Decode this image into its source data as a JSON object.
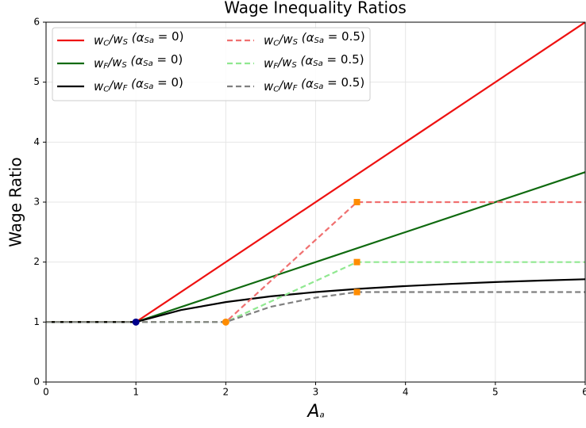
{
  "chart_data": {
    "type": "line",
    "title": "Wage Inequality Ratios",
    "xlabel": "A_a",
    "ylabel": "Wage Ratio",
    "xlim": [
      0,
      6
    ],
    "ylim": [
      0,
      6
    ],
    "xticks": [
      0,
      1,
      2,
      3,
      4,
      5,
      6
    ],
    "yticks": [
      0,
      1,
      2,
      3,
      4,
      5,
      6
    ],
    "grid": true,
    "legend": "upper left",
    "series": [
      {
        "name": "w_C/w_S (α_Sa = 0)",
        "color": "#ee1111",
        "dash": false,
        "x": [
          0,
          1,
          6
        ],
        "values": [
          1,
          1,
          6
        ]
      },
      {
        "name": "w_F/w_S (α_Sa = 0)",
        "color": "#0f6a0f",
        "dash": false,
        "x": [
          0,
          1,
          6
        ],
        "values": [
          1,
          1,
          3.5
        ]
      },
      {
        "name": "w_C/w_F (α_Sa = 0)",
        "color": "#000000",
        "dash": false,
        "x": [
          0,
          1,
          1.5,
          2,
          2.5,
          3,
          3.5,
          4,
          4.5,
          5,
          5.5,
          6
        ],
        "values": [
          1,
          1,
          1.2,
          1.333,
          1.429,
          1.5,
          1.556,
          1.6,
          1.636,
          1.667,
          1.692,
          1.714
        ]
      },
      {
        "name": "w_C/w_S (α_Sa = 0.5)",
        "color": "#f07070",
        "dash": true,
        "x": [
          0,
          2,
          3.46,
          6
        ],
        "values": [
          1,
          1,
          3,
          3
        ]
      },
      {
        "name": "w_F/w_S (α_Sa = 0.5)",
        "color": "#90e890",
        "dash": true,
        "x": [
          0,
          2,
          3.46,
          6
        ],
        "values": [
          1,
          1,
          2,
          2
        ]
      },
      {
        "name": "w_C/w_F (α_Sa = 0.5)",
        "color": "#808080",
        "dash": true,
        "x": [
          0,
          2,
          2.5,
          3,
          3.46,
          6
        ],
        "values": [
          1,
          1,
          1.255,
          1.407,
          1.5,
          1.5
        ]
      }
    ],
    "markers": [
      {
        "x": 1,
        "y": 1,
        "color": "#00008b",
        "shape": "circle"
      },
      {
        "x": 2,
        "y": 1,
        "color": "#ff8c00",
        "shape": "circle"
      },
      {
        "x": 3.46,
        "y": 3,
        "color": "#ff8c00",
        "shape": "square"
      },
      {
        "x": 3.46,
        "y": 2,
        "color": "#ff8c00",
        "shape": "square"
      },
      {
        "x": 3.46,
        "y": 1.5,
        "color": "#ff8c00",
        "shape": "square"
      }
    ]
  }
}
